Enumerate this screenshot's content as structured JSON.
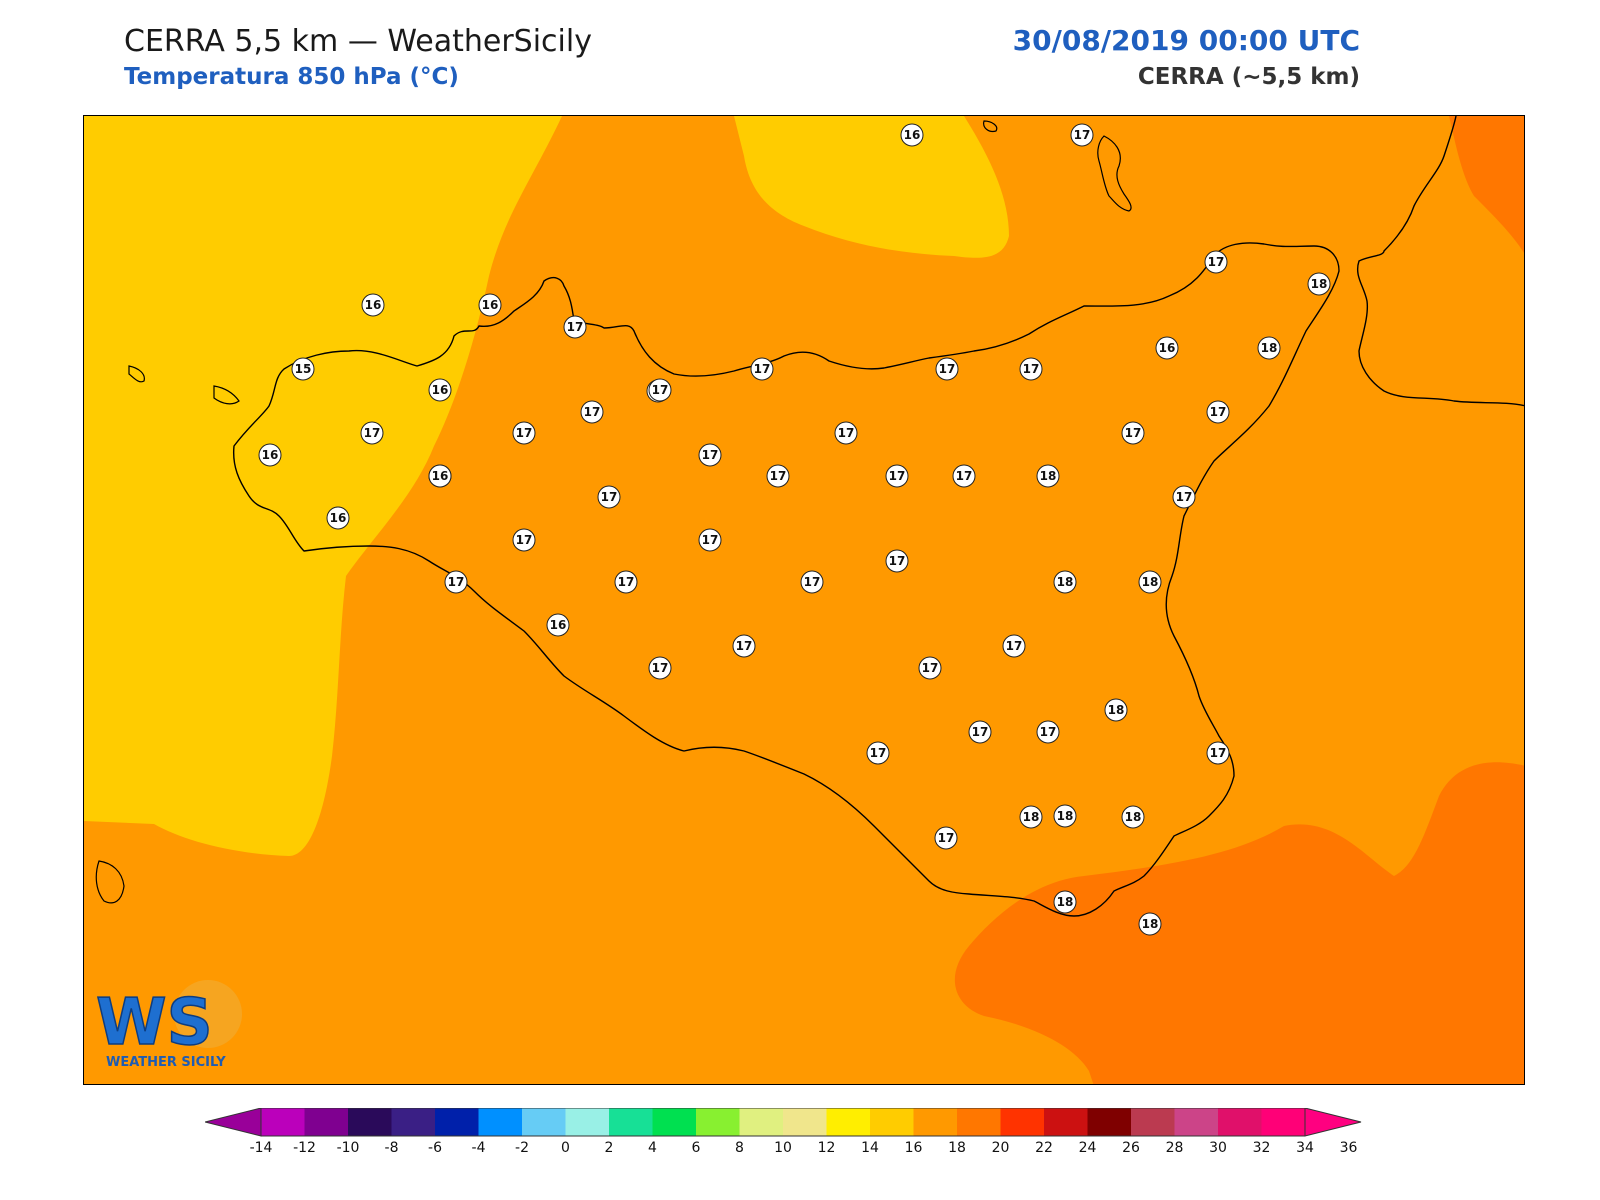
{
  "header": {
    "title": "CERRA 5,5 km — WeatherSicily",
    "subtitle": "Temperatura 850 hPa (°C)",
    "datetime": "30/08/2019 00:00 UTC",
    "model": "CERRA (~5,5 km)"
  },
  "logo": {
    "letters": "WS",
    "text": "WEATHER SICILY"
  },
  "map": {
    "field_colors": {
      "t14_16": "#ffcc00",
      "t16_18": "#ff9900",
      "t18_20": "#ff7700"
    },
    "station_values": [
      16,
      17,
      17,
      18,
      16,
      16,
      17,
      15,
      16,
      17,
      17,
      17,
      17,
      18,
      16,
      17,
      17,
      17,
      16,
      16,
      17,
      17,
      17,
      17,
      17,
      17,
      18,
      16,
      17,
      17,
      17,
      17,
      17,
      17,
      17,
      18,
      18,
      16,
      17,
      17,
      17,
      17,
      17,
      17,
      17,
      18,
      17,
      17,
      17,
      17,
      18,
      17,
      18,
      18,
      16,
      18,
      18
    ]
  },
  "colorbar": {
    "ticks": [
      "-14",
      "-12",
      "-10",
      "-8",
      "-6",
      "-4",
      "-2",
      "0",
      "2",
      "4",
      "6",
      "8",
      "10",
      "12",
      "14",
      "16",
      "18",
      "20",
      "22",
      "24",
      "26",
      "28",
      "30",
      "32",
      "34",
      "36"
    ],
    "colors": [
      "#bb00bb",
      "#7f0090",
      "#2a0a5a",
      "#3a1f85",
      "#0020aa",
      "#0090ff",
      "#66ccf5",
      "#99f0e6",
      "#17e096",
      "#00e050",
      "#88f030",
      "#e0f080",
      "#f0e68c",
      "#ffee00",
      "#ffcc00",
      "#ff9900",
      "#ff7700",
      "#ff3300",
      "#cc1111",
      "#7f0000",
      "#bb3a50",
      "#cc4488",
      "#e0106a",
      "#ff0077"
    ],
    "under_color": "#990099",
    "over_color": "#ff0080"
  }
}
